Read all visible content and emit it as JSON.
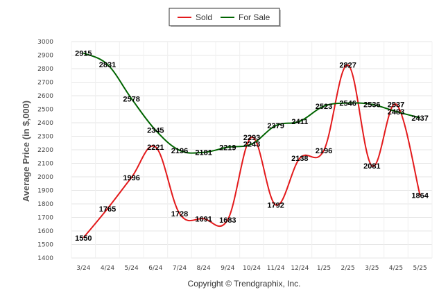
{
  "chart_data": {
    "type": "line",
    "categories": [
      "3/24",
      "4/24",
      "5/24",
      "6/24",
      "7/24",
      "8/24",
      "9/24",
      "10/24",
      "11/24",
      "12/24",
      "1/25",
      "2/25",
      "3/25",
      "4/25",
      "5/25"
    ],
    "series": [
      {
        "name": "Sold",
        "color": "#e31a1c",
        "values": [
          1550,
          1765,
          1996,
          2221,
          1728,
          1691,
          1683,
          2293,
          1792,
          2138,
          2196,
          2827,
          2081,
          2537,
          1864
        ]
      },
      {
        "name": "For Sale",
        "color": "#006400",
        "values": [
          2915,
          2831,
          2578,
          2345,
          2196,
          2181,
          2219,
          2243,
          2379,
          2411,
          2523,
          2546,
          2536,
          2483,
          2437
        ]
      }
    ],
    "ylabel": "Average Price (in $,000)",
    "ylim": [
      1400,
      3000
    ],
    "yticks": [
      1400,
      1500,
      1600,
      1700,
      1800,
      1900,
      2000,
      2100,
      2200,
      2300,
      2400,
      2500,
      2600,
      2700,
      2800,
      2900,
      3000
    ],
    "grid": true,
    "legend": "top-center"
  },
  "footer": {
    "copyright": "Copyright © Trendgraphix, Inc."
  }
}
